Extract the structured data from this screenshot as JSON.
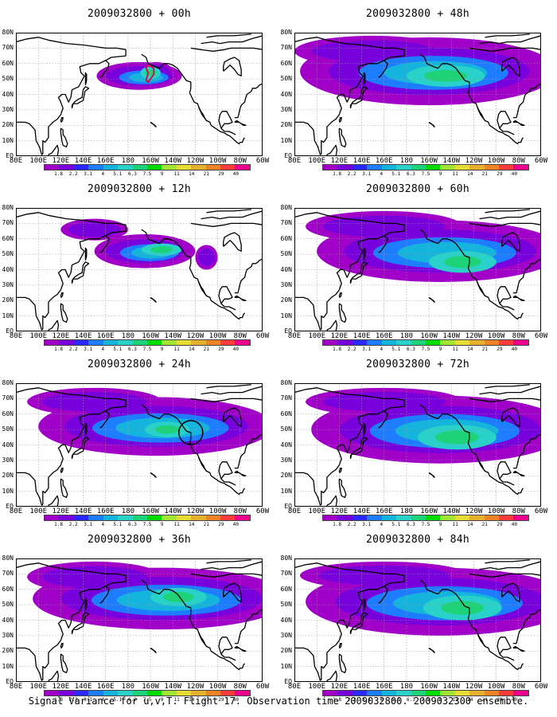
{
  "panels": [
    {
      "title": "2009032800 + 00h"
    },
    {
      "title": "2009032800 + 48h"
    },
    {
      "title": "2009032800 + 12h"
    },
    {
      "title": "2009032800 + 60h"
    },
    {
      "title": "2009032800 + 24h"
    },
    {
      "title": "2009032800 + 72h"
    },
    {
      "title": "2009032800 + 36h"
    },
    {
      "title": "2009032800 + 84h"
    }
  ],
  "lat_labels": [
    "80N",
    "70N",
    "60N",
    "50N",
    "40N",
    "30N",
    "20N",
    "10N",
    "EQ"
  ],
  "lon_labels": [
    "80E",
    "100E",
    "120E",
    "140E",
    "160E",
    "180",
    "160W",
    "140W",
    "120W",
    "100W",
    "80W",
    "60W"
  ],
  "colorbar": {
    "labels": [
      "1.8",
      "2.2",
      "3.1",
      "4",
      "5.1",
      "6.3",
      "7.5",
      "9",
      "11",
      "14",
      "21",
      "29",
      "40"
    ],
    "colors": [
      "#a000c8",
      "#7800dc",
      "#2828ff",
      "#1e7dff",
      "#14b4dc",
      "#28d2c8",
      "#1ed278",
      "#00dc00",
      "#a0e632",
      "#e6dc32",
      "#e6af2d",
      "#f08228",
      "#fa3c3c",
      "#f0008c"
    ]
  },
  "caption": "Signal Variance for u,v,T. Flight 17. Observation time 2009032800. 2009032300 ensemble."
}
